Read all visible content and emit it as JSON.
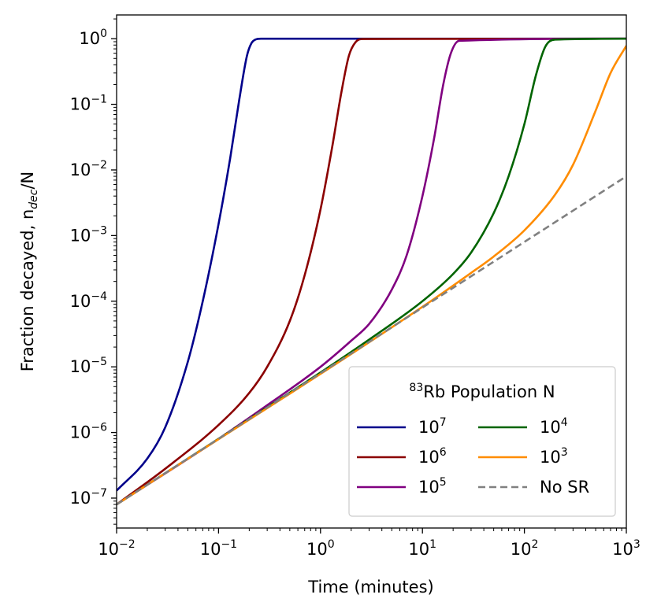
{
  "chart_data": {
    "type": "line",
    "xlabel": "Time (minutes)",
    "ylabel": {
      "main": "Fraction decayed, n",
      "sub": "dec",
      "tail": "/N"
    },
    "x_scale": "log",
    "y_scale": "log",
    "xlim": [
      0.01,
      1000
    ],
    "ylim": [
      3.5e-08,
      2.3
    ],
    "x_ticks": [
      {
        "value": 0.01,
        "base": "10",
        "exp": "−2"
      },
      {
        "value": 0.1,
        "base": "10",
        "exp": "−1"
      },
      {
        "value": 1,
        "base": "10",
        "exp": "0"
      },
      {
        "value": 10,
        "base": "10",
        "exp": "1"
      },
      {
        "value": 100,
        "base": "10",
        "exp": "2"
      },
      {
        "value": 1000,
        "base": "10",
        "exp": "3"
      }
    ],
    "y_ticks": [
      {
        "value": 1e-07,
        "base": "10",
        "exp": "−7"
      },
      {
        "value": 1e-06,
        "base": "10",
        "exp": "−6"
      },
      {
        "value": 1e-05,
        "base": "10",
        "exp": "−5"
      },
      {
        "value": 0.0001,
        "base": "10",
        "exp": "−4"
      },
      {
        "value": 0.001,
        "base": "10",
        "exp": "−3"
      },
      {
        "value": 0.01,
        "base": "10",
        "exp": "−2"
      },
      {
        "value": 0.1,
        "base": "10",
        "exp": "−1"
      },
      {
        "value": 1,
        "base": "10",
        "exp": "0"
      }
    ],
    "grid": false,
    "legend": {
      "title_sup": "83",
      "title_text": "Rb Population N",
      "placement": "lower-right",
      "columns": 2
    },
    "series": [
      {
        "name": "10",
        "name_sup": "7",
        "color": "#00008b",
        "style": "solid",
        "x": [
          0.01,
          0.02,
          0.03,
          0.05,
          0.07,
          0.1,
          0.13,
          0.16,
          0.19,
          0.21,
          0.23,
          0.26,
          1000
        ],
        "y": [
          1.3e-07,
          4e-07,
          1.2e-06,
          1.2e-05,
          0.0001,
          0.0015,
          0.015,
          0.12,
          0.55,
          0.85,
          0.97,
          1.0,
          1.0
        ]
      },
      {
        "name": "10",
        "name_sup": "6",
        "color": "#8b0000",
        "style": "solid",
        "x": [
          0.01,
          0.03,
          0.1,
          0.2,
          0.3,
          0.5,
          0.7,
          1.0,
          1.3,
          1.6,
          1.9,
          2.2,
          2.6,
          1000
        ],
        "y": [
          8e-08,
          2.8e-07,
          1.3e-06,
          4e-06,
          1e-05,
          5e-05,
          0.00025,
          0.0025,
          0.022,
          0.15,
          0.55,
          0.88,
          0.99,
          1.0
        ]
      },
      {
        "name": "10",
        "name_sup": "5",
        "color": "#800080",
        "style": "solid",
        "x": [
          0.01,
          0.1,
          0.3,
          1,
          2,
          3,
          5,
          7,
          10,
          13,
          16,
          19,
          23,
          1000
        ],
        "y": [
          8e-08,
          8e-07,
          2.6e-06,
          1e-05,
          2.5e-05,
          4.5e-05,
          0.00015,
          0.0005,
          0.004,
          0.03,
          0.2,
          0.6,
          0.93,
          1.0
        ]
      },
      {
        "name": "10",
        "name_sup": "4",
        "color": "#006400",
        "style": "solid",
        "x": [
          0.01,
          1,
          3,
          10,
          20,
          30,
          50,
          70,
          100,
          130,
          160,
          200,
          1000
        ],
        "y": [
          8e-08,
          8.2e-06,
          2.6e-05,
          0.0001,
          0.00026,
          0.00055,
          0.0022,
          0.008,
          0.05,
          0.28,
          0.75,
          0.97,
          1.0
        ]
      },
      {
        "name": "10",
        "name_sup": "3",
        "color": "#ff8c00",
        "style": "solid",
        "x": [
          0.01,
          10,
          30,
          50,
          100,
          200,
          300,
          500,
          700,
          1000
        ],
        "y": [
          8e-08,
          8.2e-05,
          0.00027,
          0.00048,
          0.0012,
          0.0042,
          0.012,
          0.08,
          0.3,
          0.78
        ]
      },
      {
        "name": "No SR",
        "name_sup": "",
        "color": "#808080",
        "style": "dashed",
        "x": [
          0.01,
          1000
        ],
        "y": [
          8e-08,
          0.008
        ]
      }
    ]
  }
}
